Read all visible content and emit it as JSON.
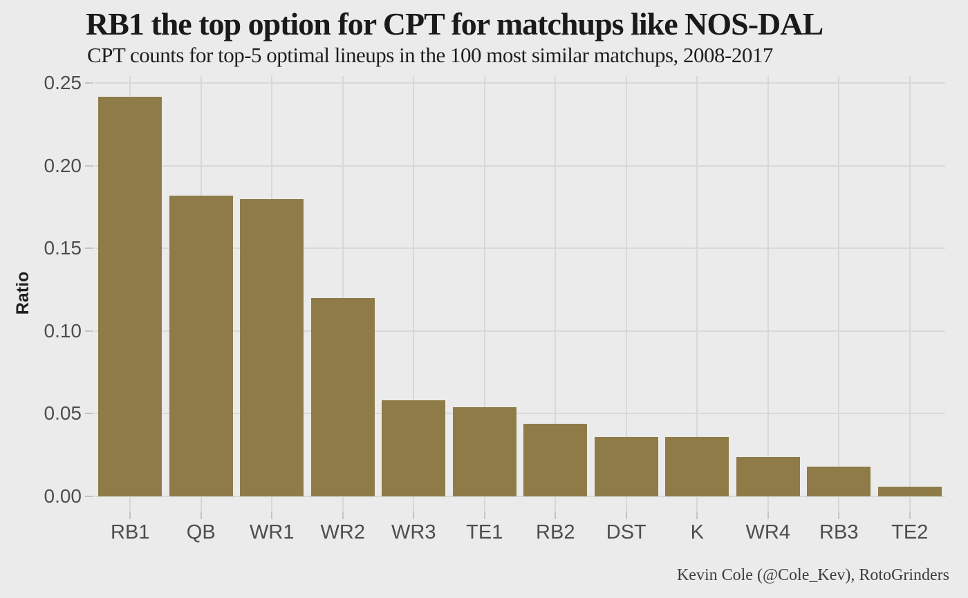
{
  "chart_data": {
    "type": "bar",
    "title": "RB1 the top option for CPT for matchups like NOS-DAL",
    "subtitle": "CPT counts for top-5 optimal lineups in the 100 most similar matchups, 2008-2017",
    "ylabel": "Ratio",
    "xlabel": "",
    "caption": "Kevin Cole (@Cole_Kev), RotoGrinders",
    "categories": [
      "RB1",
      "QB",
      "WR1",
      "WR2",
      "WR3",
      "TE1",
      "RB2",
      "DST",
      "K",
      "WR4",
      "RB3",
      "TE2"
    ],
    "values": [
      0.242,
      0.182,
      0.18,
      0.12,
      0.058,
      0.054,
      0.044,
      0.036,
      0.036,
      0.024,
      0.018,
      0.006
    ],
    "ylim": [
      0,
      0.25
    ],
    "yticks": [
      0,
      0.05,
      0.1,
      0.15,
      0.2,
      0.25
    ],
    "ytick_labels": [
      "0.00",
      "0.05",
      "0.10",
      "0.15",
      "0.20",
      "0.25"
    ],
    "grid": "major gridlines only, vertical line at each category center",
    "legend": "none",
    "colors": {
      "bar": "#8e7b48",
      "background": "#ebebeb",
      "gridline": "#d8d8d8",
      "tick": "#c4c4c4",
      "axis_text": "#4d4d4d",
      "title_text": "#1a1a1a",
      "subtitle_text": "#1f1f1f",
      "axis_title_text": "#1f1f1f",
      "caption_text": "#3d3d3d"
    }
  }
}
